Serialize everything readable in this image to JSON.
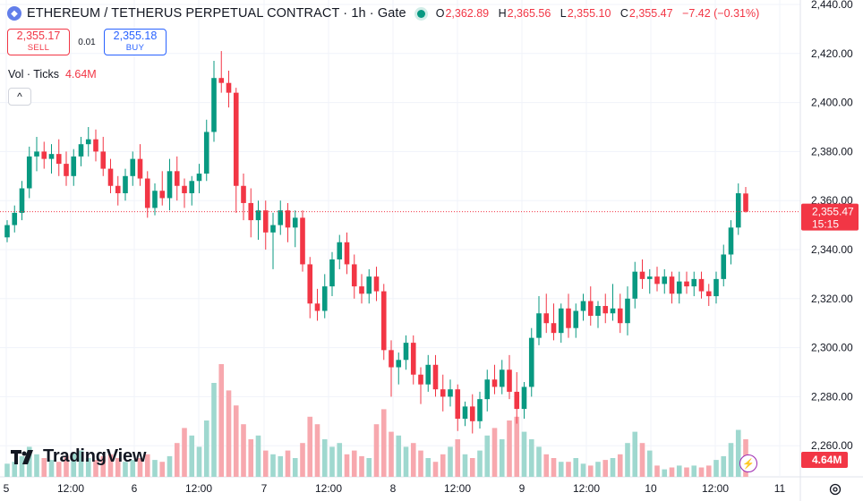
{
  "header": {
    "title": "ETHEREUM / TETHERUS PERPETUAL CONTRACT · 1h · Gate",
    "ohlc": [
      {
        "key": "O",
        "value": "2,362.89"
      },
      {
        "key": "H",
        "value": "2,365.56"
      },
      {
        "key": "L",
        "value": "2,355.10"
      },
      {
        "key": "C",
        "value": "2,355.47"
      }
    ],
    "change": "−7.42 (−0.31%)",
    "icon": "ethereum-icon",
    "live_color": "#089981"
  },
  "trade": {
    "sell_price": "2,355.17",
    "sell_label": "SELL",
    "spread": "0.01",
    "buy_price": "2,355.18",
    "buy_label": "BUY"
  },
  "volume_legend": {
    "label": "Vol · Ticks",
    "value": "4.64M"
  },
  "collapse_symbol": "^",
  "logo_text": "TradingView",
  "colors": {
    "up": "#089981",
    "down": "#f23645",
    "vol_up": "#9fd8cf",
    "vol_down": "#f7a8ae",
    "grid": "#f0f3fa"
  },
  "chart_data": {
    "type": "candlestick",
    "title": "ETHEREUM / TETHERUS PERPETUAL CONTRACT",
    "interval": "1h",
    "y_axis": {
      "ticks": [
        "2,440.00",
        "2,420.00",
        "2,400.00",
        "2,380.00",
        "2,360.00",
        "2,340.00",
        "2,320.00",
        "2,300.00",
        "2,280.00",
        "2,260.00"
      ],
      "range": [
        2255,
        2440
      ]
    },
    "x_axis": {
      "ticks": [
        "5",
        "12:00",
        "6",
        "12:00",
        "7",
        "12:00",
        "8",
        "12:00",
        "9",
        "12:00",
        "10",
        "12:00",
        "11"
      ]
    },
    "last_price": {
      "value": "2,355.47",
      "countdown": "15:15"
    },
    "last_volume": "4.64M",
    "candles": [
      [
        2345,
        2352,
        2343,
        2350
      ],
      [
        2350,
        2358,
        2347,
        2355
      ],
      [
        2355,
        2368,
        2352,
        2365
      ],
      [
        2365,
        2382,
        2361,
        2378
      ],
      [
        2378,
        2386,
        2372,
        2380
      ],
      [
        2380,
        2384,
        2373,
        2377
      ],
      [
        2377,
        2383,
        2371,
        2379
      ],
      [
        2379,
        2385,
        2370,
        2375
      ],
      [
        2375,
        2380,
        2366,
        2370
      ],
      [
        2370,
        2381,
        2366,
        2378
      ],
      [
        2378,
        2386,
        2374,
        2383
      ],
      [
        2383,
        2390,
        2378,
        2385
      ],
      [
        2385,
        2389,
        2376,
        2380
      ],
      [
        2380,
        2386,
        2370,
        2373
      ],
      [
        2373,
        2377,
        2363,
        2366
      ],
      [
        2366,
        2370,
        2358,
        2363
      ],
      [
        2363,
        2373,
        2360,
        2370
      ],
      [
        2370,
        2380,
        2366,
        2377
      ],
      [
        2377,
        2383,
        2366,
        2369
      ],
      [
        2369,
        2372,
        2353,
        2357
      ],
      [
        2357,
        2367,
        2354,
        2364
      ],
      [
        2364,
        2372,
        2358,
        2361
      ],
      [
        2361,
        2377,
        2356,
        2372
      ],
      [
        2372,
        2378,
        2360,
        2366
      ],
      [
        2366,
        2369,
        2357,
        2363
      ],
      [
        2363,
        2370,
        2358,
        2368
      ],
      [
        2368,
        2375,
        2363,
        2371
      ],
      [
        2371,
        2393,
        2368,
        2388
      ],
      [
        2388,
        2417,
        2384,
        2410
      ],
      [
        2410,
        2421,
        2404,
        2408
      ],
      [
        2408,
        2413,
        2398,
        2404
      ],
      [
        2404,
        2406,
        2355,
        2366
      ],
      [
        2366,
        2371,
        2352,
        2359
      ],
      [
        2359,
        2365,
        2345,
        2352
      ],
      [
        2352,
        2360,
        2344,
        2356
      ],
      [
        2356,
        2360,
        2340,
        2347
      ],
      [
        2347,
        2355,
        2332,
        2350
      ],
      [
        2350,
        2360,
        2346,
        2356
      ],
      [
        2356,
        2359,
        2343,
        2349
      ],
      [
        2349,
        2356,
        2341,
        2353
      ],
      [
        2353,
        2356,
        2331,
        2334
      ],
      [
        2334,
        2337,
        2312,
        2318
      ],
      [
        2318,
        2324,
        2311,
        2315
      ],
      [
        2315,
        2330,
        2312,
        2325
      ],
      [
        2325,
        2339,
        2321,
        2336
      ],
      [
        2336,
        2346,
        2332,
        2343
      ],
      [
        2343,
        2347,
        2330,
        2334
      ],
      [
        2334,
        2338,
        2320,
        2325
      ],
      [
        2325,
        2330,
        2318,
        2322
      ],
      [
        2322,
        2332,
        2318,
        2329
      ],
      [
        2329,
        2333,
        2319,
        2323
      ],
      [
        2323,
        2326,
        2295,
        2299
      ],
      [
        2299,
        2303,
        2280,
        2292
      ],
      [
        2292,
        2298,
        2285,
        2295
      ],
      [
        2295,
        2305,
        2291,
        2302
      ],
      [
        2302,
        2305,
        2285,
        2289
      ],
      [
        2289,
        2292,
        2277,
        2285
      ],
      [
        2285,
        2297,
        2282,
        2293
      ],
      [
        2293,
        2297,
        2280,
        2283
      ],
      [
        2283,
        2289,
        2274,
        2280
      ],
      [
        2280,
        2287,
        2276,
        2283
      ],
      [
        2283,
        2285,
        2266,
        2271
      ],
      [
        2271,
        2278,
        2268,
        2276
      ],
      [
        2276,
        2281,
        2265,
        2270
      ],
      [
        2270,
        2282,
        2267,
        2279
      ],
      [
        2279,
        2291,
        2274,
        2287
      ],
      [
        2287,
        2293,
        2281,
        2284
      ],
      [
        2284,
        2295,
        2281,
        2291
      ],
      [
        2291,
        2297,
        2279,
        2282
      ],
      [
        2282,
        2290,
        2269,
        2275
      ],
      [
        2275,
        2286,
        2271,
        2284
      ],
      [
        2284,
        2308,
        2280,
        2304
      ],
      [
        2304,
        2321,
        2301,
        2314
      ],
      [
        2314,
        2322,
        2306,
        2310
      ],
      [
        2310,
        2318,
        2303,
        2306
      ],
      [
        2306,
        2318,
        2302,
        2316
      ],
      [
        2316,
        2322,
        2304,
        2308
      ],
      [
        2308,
        2318,
        2304,
        2315
      ],
      [
        2315,
        2322,
        2311,
        2319
      ],
      [
        2319,
        2325,
        2309,
        2313
      ],
      [
        2313,
        2319,
        2308,
        2317
      ],
      [
        2317,
        2322,
        2310,
        2314
      ],
      [
        2314,
        2326,
        2311,
        2316
      ],
      [
        2316,
        2322,
        2306,
        2310
      ],
      [
        2310,
        2325,
        2305,
        2320
      ],
      [
        2320,
        2335,
        2316,
        2331
      ],
      [
        2331,
        2336,
        2324,
        2328
      ],
      [
        2328,
        2332,
        2322,
        2329
      ],
      [
        2329,
        2333,
        2323,
        2326
      ],
      [
        2326,
        2332,
        2322,
        2329
      ],
      [
        2329,
        2331,
        2318,
        2322
      ],
      [
        2322,
        2331,
        2318,
        2327
      ],
      [
        2327,
        2331,
        2322,
        2325
      ],
      [
        2325,
        2331,
        2321,
        2328
      ],
      [
        2328,
        2331,
        2320,
        2323
      ],
      [
        2323,
        2326,
        2317,
        2321
      ],
      [
        2321,
        2331,
        2318,
        2328
      ],
      [
        2328,
        2342,
        2325,
        2338
      ],
      [
        2338,
        2352,
        2334,
        2349
      ],
      [
        2349,
        2367,
        2346,
        2363
      ],
      [
        2362.89,
        2365.56,
        2355.1,
        2355.47
      ]
    ],
    "volumes": [
      0.35,
      0.4,
      0.55,
      0.8,
      0.6,
      0.5,
      0.45,
      0.4,
      0.55,
      0.65,
      0.7,
      0.5,
      0.45,
      0.55,
      0.6,
      0.5,
      0.4,
      0.45,
      0.5,
      0.6,
      0.45,
      0.4,
      0.55,
      0.9,
      1.3,
      1.1,
      0.8,
      1.5,
      2.5,
      3.0,
      2.3,
      1.9,
      1.4,
      1.0,
      1.1,
      0.7,
      0.6,
      0.55,
      0.7,
      0.5,
      0.9,
      1.6,
      1.4,
      1.0,
      0.8,
      0.9,
      0.6,
      0.7,
      0.55,
      0.5,
      1.4,
      1.8,
      1.2,
      1.1,
      0.8,
      0.9,
      0.7,
      0.5,
      0.4,
      0.6,
      0.8,
      1.0,
      0.6,
      0.5,
      0.7,
      1.1,
      1.3,
      1.0,
      1.5,
      1.6,
      1.2,
      1.0,
      0.8,
      0.6,
      0.5,
      0.4,
      0.4,
      0.5,
      0.35,
      0.3,
      0.4,
      0.45,
      0.5,
      0.6,
      0.9,
      1.2,
      0.9,
      0.7,
      0.3,
      0.2,
      0.25,
      0.3,
      0.25,
      0.3,
      0.25,
      0.3,
      0.45,
      0.55,
      0.9,
      1.25,
      1.0
    ]
  }
}
